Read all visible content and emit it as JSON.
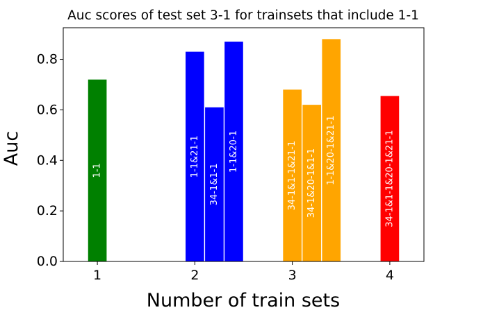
{
  "chart_data": {
    "type": "bar",
    "title": "Auc scores of test set 3-1 for trainsets that include 1-1",
    "xlabel": "Number of train sets",
    "ylabel": "Auc",
    "xlim": [
      0.65,
      4.35
    ],
    "ylim": [
      0,
      0.925
    ],
    "xticks": [
      "1",
      "2",
      "3",
      "4"
    ],
    "yticks": [
      "0.0",
      "0.2",
      "0.4",
      "0.6",
      "0.8"
    ],
    "ytick_values": [
      0,
      0.2,
      0.4,
      0.6,
      0.8
    ],
    "grid": false,
    "bars": [
      {
        "x": 1.0,
        "value": 0.72,
        "label": "1-1",
        "color": "#008000"
      },
      {
        "x": 2.0,
        "value": 0.83,
        "label": "1-1&21-1",
        "color": "#0000ff"
      },
      {
        "x": 2.2,
        "value": 0.61,
        "label": "34-1&1-1",
        "color": "#0000ff"
      },
      {
        "x": 2.4,
        "value": 0.87,
        "label": "1-1&20-1",
        "color": "#0000ff"
      },
      {
        "x": 3.0,
        "value": 0.68,
        "label": "34-1&1-1&21-1",
        "color": "#ffa500"
      },
      {
        "x": 3.2,
        "value": 0.62,
        "label": "34-1&20-1&1-1",
        "color": "#ffa500"
      },
      {
        "x": 3.4,
        "value": 0.88,
        "label": "1-1&20-1&21-1",
        "color": "#ffa500"
      },
      {
        "x": 4.0,
        "value": 0.655,
        "label": "34-1&1-1&20-1&21-1",
        "color": "#ff0000"
      }
    ]
  }
}
